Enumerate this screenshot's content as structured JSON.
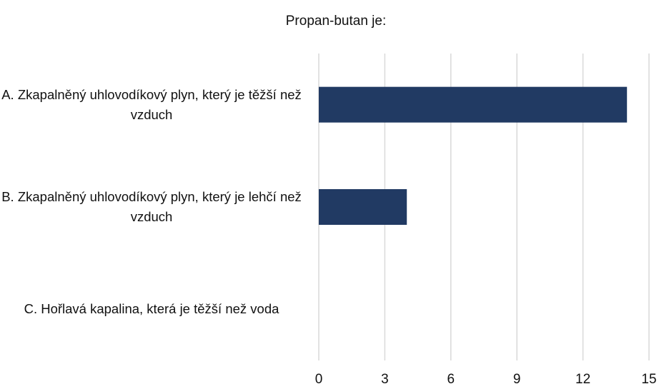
{
  "chart_data": {
    "type": "barh",
    "title": "Propan-butan je:",
    "categories": [
      "A. Zkapalněný uhlovodíkový plyn, který je těžší než vzduch",
      "B. Zkapalněný uhlovodíkový plyn, který je lehčí než vzduch",
      "C. Hořlavá kapalina, která je těžší než voda"
    ],
    "values": [
      14,
      4,
      0
    ],
    "color": "#213a63",
    "xlim": [
      0,
      15
    ],
    "xticks": [
      0,
      3,
      6,
      9,
      12,
      15
    ],
    "grid": true
  }
}
